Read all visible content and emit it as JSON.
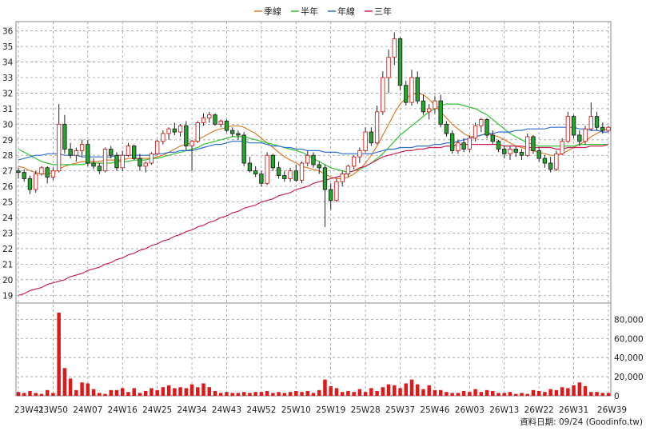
{
  "legend": [
    {
      "label": "季線",
      "color": "#e07b2a"
    },
    {
      "label": "半年",
      "color": "#33c233"
    },
    {
      "label": "年線",
      "color": "#2f6fd6"
    },
    {
      "label": "三年",
      "color": "#cc2255"
    }
  ],
  "footer": "資料日期: 09/24 (Goodinfo.tw)",
  "chart_data": [
    {
      "type": "candlestick",
      "x_ticks": [
        "23W41",
        "23W50",
        "24W07",
        "24W16",
        "24W25",
        "24W34",
        "24W43",
        "24W52",
        "25W10",
        "25W19",
        "25W28",
        "25W37",
        "25W46",
        "26W03",
        "26W13",
        "26W22",
        "26W31",
        "26W39"
      ],
      "ylim": [
        18.5,
        36.6
      ],
      "y_ticks": [
        19,
        20,
        21,
        22,
        23,
        24,
        25,
        26,
        27,
        28,
        29,
        30,
        31,
        32,
        33,
        34,
        35,
        36
      ],
      "grid": true,
      "legend_position": "top-center",
      "candles": [
        [
          27.0,
          27.2,
          26.5,
          26.9
        ],
        [
          26.9,
          27.1,
          26.3,
          26.5
        ],
        [
          26.5,
          26.7,
          25.5,
          25.8
        ],
        [
          25.8,
          27.0,
          25.6,
          26.8
        ],
        [
          26.8,
          27.3,
          26.7,
          27.2
        ],
        [
          27.2,
          27.3,
          26.2,
          26.6
        ],
        [
          26.6,
          27.2,
          26.4,
          27.0
        ],
        [
          27.0,
          31.3,
          26.9,
          30.0
        ],
        [
          30.0,
          30.6,
          28.1,
          28.4
        ],
        [
          28.4,
          28.8,
          27.8,
          28.0
        ],
        [
          28.0,
          28.5,
          27.6,
          28.3
        ],
        [
          28.3,
          29.0,
          27.9,
          28.7
        ],
        [
          28.7,
          29.0,
          27.3,
          27.5
        ],
        [
          27.5,
          27.8,
          27.1,
          27.3
        ],
        [
          27.3,
          27.5,
          26.8,
          27.0
        ],
        [
          27.0,
          28.5,
          26.9,
          28.4
        ],
        [
          28.4,
          28.6,
          27.8,
          28.0
        ],
        [
          28.0,
          28.2,
          27.0,
          27.2
        ],
        [
          27.2,
          28.3,
          27.0,
          28.0
        ],
        [
          28.0,
          28.8,
          27.9,
          28.6
        ],
        [
          28.6,
          28.7,
          27.7,
          27.8
        ],
        [
          27.8,
          28.1,
          27.0,
          27.3
        ],
        [
          27.3,
          27.6,
          26.9,
          27.5
        ],
        [
          27.5,
          28.2,
          27.4,
          28.1
        ],
        [
          28.1,
          29.0,
          28.0,
          28.9
        ],
        [
          28.9,
          29.6,
          28.7,
          29.4
        ],
        [
          29.4,
          29.8,
          29.0,
          29.7
        ],
        [
          29.7,
          30.1,
          29.3,
          29.5
        ],
        [
          29.5,
          30.0,
          29.2,
          29.9
        ],
        [
          29.9,
          30.2,
          28.3,
          28.6
        ],
        [
          28.6,
          29.0,
          27.0,
          28.9
        ],
        [
          28.9,
          30.2,
          28.8,
          30.1
        ],
        [
          30.1,
          30.7,
          29.9,
          30.4
        ],
        [
          30.4,
          30.8,
          30.1,
          30.6
        ],
        [
          30.6,
          30.7,
          29.9,
          30.0
        ],
        [
          30.0,
          30.3,
          29.8,
          30.2
        ],
        [
          30.2,
          30.3,
          29.5,
          29.6
        ],
        [
          29.6,
          29.8,
          29.2,
          29.4
        ],
        [
          29.4,
          29.6,
          29.0,
          29.3
        ],
        [
          29.3,
          29.5,
          27.3,
          27.5
        ],
        [
          27.5,
          27.9,
          26.9,
          27.0
        ],
        [
          27.0,
          27.3,
          26.6,
          26.8
        ],
        [
          26.8,
          27.0,
          26.0,
          26.2
        ],
        [
          26.2,
          28.2,
          26.1,
          28.0
        ],
        [
          28.0,
          28.1,
          27.0,
          27.2
        ],
        [
          27.2,
          27.6,
          26.5,
          26.7
        ],
        [
          26.7,
          27.0,
          26.3,
          26.5
        ],
        [
          26.5,
          27.2,
          26.3,
          27.0
        ],
        [
          27.0,
          27.4,
          26.3,
          26.4
        ],
        [
          26.4,
          27.6,
          26.2,
          27.5
        ],
        [
          27.5,
          28.3,
          27.3,
          28.0
        ],
        [
          28.0,
          28.2,
          27.2,
          27.4
        ],
        [
          27.4,
          27.6,
          26.8,
          27.2
        ],
        [
          27.2,
          27.4,
          23.4,
          25.8
        ],
        [
          25.8,
          26.2,
          24.5,
          25.1
        ],
        [
          25.1,
          26.5,
          25.0,
          26.3
        ],
        [
          26.3,
          27.0,
          26.0,
          26.8
        ],
        [
          26.8,
          27.4,
          26.6,
          27.3
        ],
        [
          27.3,
          28.0,
          27.1,
          27.9
        ],
        [
          27.9,
          28.5,
          27.5,
          28.3
        ],
        [
          28.3,
          29.8,
          28.2,
          29.5
        ],
        [
          29.5,
          29.8,
          28.6,
          28.8
        ],
        [
          28.8,
          31.2,
          28.7,
          30.8
        ],
        [
          30.8,
          33.4,
          30.6,
          33.0
        ],
        [
          33.0,
          34.8,
          32.0,
          34.3
        ],
        [
          34.3,
          35.9,
          33.8,
          35.5
        ],
        [
          35.5,
          35.6,
          32.2,
          32.5
        ],
        [
          32.5,
          32.8,
          31.2,
          31.4
        ],
        [
          31.4,
          33.5,
          31.2,
          33.0
        ],
        [
          33.0,
          33.4,
          31.3,
          31.5
        ],
        [
          31.5,
          31.9,
          30.6,
          30.8
        ],
        [
          30.8,
          31.3,
          30.3,
          31.0
        ],
        [
          31.0,
          31.8,
          30.7,
          31.5
        ],
        [
          31.5,
          31.9,
          29.8,
          30.0
        ],
        [
          30.0,
          30.2,
          29.2,
          29.4
        ],
        [
          29.4,
          29.6,
          28.1,
          28.3
        ],
        [
          28.3,
          29.0,
          28.1,
          28.8
        ],
        [
          28.8,
          29.1,
          28.2,
          28.4
        ],
        [
          28.4,
          29.3,
          28.2,
          29.1
        ],
        [
          29.1,
          30.1,
          28.9,
          29.9
        ],
        [
          29.9,
          30.4,
          29.5,
          30.3
        ],
        [
          30.3,
          30.4,
          29.1,
          29.3
        ],
        [
          29.3,
          29.6,
          28.7,
          28.9
        ],
        [
          28.9,
          29.0,
          28.2,
          28.4
        ],
        [
          28.4,
          28.6,
          27.8,
          28.1
        ],
        [
          28.1,
          28.6,
          27.7,
          28.4
        ],
        [
          28.4,
          28.6,
          27.9,
          28.2
        ],
        [
          28.2,
          28.4,
          27.7,
          28.0
        ],
        [
          28.0,
          29.4,
          27.9,
          29.2
        ],
        [
          29.2,
          29.3,
          28.1,
          28.3
        ],
        [
          28.3,
          28.5,
          27.6,
          27.8
        ],
        [
          27.8,
          28.0,
          27.2,
          27.5
        ],
        [
          27.5,
          27.9,
          26.9,
          27.1
        ],
        [
          27.1,
          28.3,
          27.0,
          28.1
        ],
        [
          28.1,
          29.1,
          28.0,
          28.9
        ],
        [
          28.9,
          30.8,
          28.8,
          30.5
        ],
        [
          30.5,
          30.6,
          29.1,
          29.3
        ],
        [
          29.3,
          29.6,
          28.6,
          28.9
        ],
        [
          28.9,
          29.9,
          28.7,
          29.7
        ],
        [
          29.7,
          31.4,
          29.6,
          30.5
        ],
        [
          30.5,
          30.8,
          29.6,
          29.8
        ],
        [
          29.8,
          30.1,
          29.4,
          29.6
        ],
        [
          29.6,
          29.9,
          29.5,
          29.8
        ]
      ],
      "series": [
        {
          "name": "季線",
          "values": [
            27.3,
            27.2,
            27.0,
            26.9,
            26.8,
            26.8,
            26.9,
            27.1,
            27.3,
            27.4,
            27.5,
            27.6,
            27.6,
            27.6,
            27.6,
            27.7,
            27.7,
            27.7,
            27.7,
            27.8,
            27.8,
            27.8,
            27.8,
            27.8,
            27.9,
            28.0,
            28.2,
            28.4,
            28.6,
            28.7,
            28.8,
            29.0,
            29.2,
            29.4,
            29.6,
            29.7,
            29.8,
            29.9,
            29.9,
            29.8,
            29.6,
            29.4,
            29.1,
            28.8,
            28.5,
            28.2,
            27.9,
            27.7,
            27.5,
            27.3,
            27.2,
            27.1,
            27.0,
            26.8,
            26.6,
            26.5,
            26.5,
            26.6,
            26.8,
            27.1,
            27.5,
            28.0,
            28.6,
            29.3,
            30.0,
            30.7,
            31.3,
            31.7,
            31.9,
            32.0,
            31.9,
            31.6,
            31.2,
            30.8,
            30.4,
            30.0,
            29.7,
            29.4,
            29.2,
            29.2,
            29.3,
            29.4,
            29.3,
            29.2,
            29.0,
            28.8,
            28.6,
            28.5,
            28.4,
            28.3,
            28.2,
            28.1,
            28.0,
            28.0,
            28.1,
            28.3,
            28.5,
            28.7,
            28.9,
            29.2,
            29.4,
            29.6,
            29.7
          ]
        },
        {
          "name": "半年",
          "values": [
            28.4,
            28.2,
            28.0,
            27.8,
            27.6,
            27.5,
            27.4,
            27.4,
            27.4,
            27.4,
            27.4,
            27.4,
            27.5,
            27.5,
            27.5,
            27.5,
            27.5,
            27.6,
            27.6,
            27.6,
            27.7,
            27.7,
            27.7,
            27.8,
            27.8,
            27.9,
            28.0,
            28.1,
            28.2,
            28.3,
            28.4,
            28.5,
            28.7,
            28.8,
            28.9,
            29.0,
            29.1,
            29.2,
            29.2,
            29.2,
            29.1,
            29.0,
            28.9,
            28.8,
            28.7,
            28.6,
            28.5,
            28.4,
            28.3,
            28.2,
            28.0,
            27.8,
            27.6,
            27.4,
            27.2,
            27.1,
            27.0,
            26.9,
            27.0,
            27.1,
            27.3,
            27.5,
            27.8,
            28.1,
            28.5,
            28.9,
            29.3,
            29.6,
            29.9,
            30.2,
            30.5,
            30.8,
            31.0,
            31.2,
            31.3,
            31.3,
            31.3,
            31.2,
            31.1,
            31.0,
            30.8,
            30.6,
            30.3,
            30.0,
            29.7,
            29.4,
            29.2,
            29.0,
            28.8,
            28.7,
            28.6,
            28.6,
            28.6,
            28.6,
            28.6,
            28.6,
            28.6,
            28.7,
            28.7,
            28.7,
            28.7,
            28.7,
            28.7
          ]
        },
        {
          "name": "年線",
          "values": [
            27.7,
            27.8,
            27.9,
            28.0,
            28.0,
            28.1,
            28.1,
            28.1,
            28.0,
            28.0,
            28.0,
            27.9,
            27.9,
            27.9,
            27.9,
            27.9,
            27.9,
            28.0,
            28.0,
            28.0,
            28.0,
            28.0,
            28.0,
            28.0,
            28.1,
            28.1,
            28.2,
            28.2,
            28.3,
            28.3,
            28.3,
            28.4,
            28.5,
            28.6,
            28.7,
            28.7,
            28.8,
            28.9,
            28.9,
            28.9,
            28.8,
            28.8,
            28.8,
            28.7,
            28.6,
            28.6,
            28.5,
            28.5,
            28.4,
            28.4,
            28.3,
            28.3,
            28.3,
            28.2,
            28.2,
            28.2,
            28.1,
            28.1,
            28.1,
            28.1,
            28.1,
            28.1,
            28.2,
            28.3,
            28.4,
            28.4,
            28.5,
            28.5,
            28.5,
            28.6,
            28.6,
            28.6,
            28.7,
            28.7,
            28.8,
            28.8,
            28.9,
            29.0,
            29.1,
            29.2,
            29.3,
            29.4,
            29.4,
            29.5,
            29.5,
            29.5,
            29.6,
            29.6,
            29.7,
            29.7,
            29.7,
            29.7,
            29.8,
            29.8,
            29.8,
            29.8,
            29.8,
            29.7,
            29.7,
            29.6,
            29.6,
            29.5,
            29.5
          ]
        },
        {
          "name": "三年",
          "values": [
            19.0,
            19.1,
            19.3,
            19.4,
            19.5,
            19.7,
            19.8,
            19.9,
            20.0,
            20.2,
            20.3,
            20.4,
            20.6,
            20.7,
            20.8,
            21.0,
            21.1,
            21.3,
            21.4,
            21.6,
            21.7,
            21.9,
            22.0,
            22.2,
            22.3,
            22.5,
            22.6,
            22.8,
            22.9,
            23.1,
            23.2,
            23.4,
            23.5,
            23.7,
            23.8,
            24.0,
            24.1,
            24.3,
            24.4,
            24.6,
            24.7,
            24.8,
            25.0,
            25.1,
            25.2,
            25.4,
            25.5,
            25.6,
            25.8,
            25.9,
            26.0,
            26.2,
            26.3,
            26.4,
            26.5,
            26.6,
            26.7,
            26.9,
            27.0,
            27.2,
            27.3,
            27.5,
            27.7,
            27.9,
            28.0,
            28.1,
            28.2,
            28.3,
            28.3,
            28.4,
            28.4,
            28.5,
            28.5,
            28.5,
            28.6,
            28.6,
            28.7,
            28.7,
            28.7,
            28.7,
            28.7,
            28.7,
            28.7,
            28.7,
            28.6,
            28.6,
            28.6,
            28.6,
            28.5,
            28.5,
            28.5,
            28.5,
            28.5,
            28.4,
            28.4,
            28.5,
            28.5,
            28.5,
            28.5,
            28.6,
            28.6,
            28.6,
            28.7
          ]
        }
      ]
    },
    {
      "type": "bar",
      "name": "volume",
      "ylim": [
        0,
        92000
      ],
      "y_ticks": [
        "0",
        "20,000",
        "40,000",
        "60,000",
        "80,000"
      ],
      "y_tick_values": [
        0,
        20000,
        40000,
        60000,
        80000
      ],
      "values": [
        4000,
        3000,
        5000,
        3000,
        2000,
        6000,
        3000,
        87000,
        29000,
        18000,
        6000,
        14000,
        13000,
        7000,
        3000,
        2000,
        6000,
        6000,
        8000,
        4000,
        8000,
        3000,
        5000,
        8000,
        6000,
        9000,
        11000,
        8000,
        9000,
        8000,
        12000,
        9000,
        13000,
        9000,
        5000,
        3000,
        4000,
        3000,
        3000,
        4000,
        3000,
        4000,
        4000,
        5000,
        3000,
        4000,
        3000,
        4000,
        5000,
        4000,
        5000,
        3000,
        6000,
        17000,
        10000,
        8000,
        4000,
        5000,
        4000,
        7000,
        4000,
        8000,
        5000,
        9000,
        12000,
        11000,
        8000,
        13000,
        17000,
        12000,
        7000,
        11000,
        6000,
        6000,
        4000,
        3000,
        3000,
        5000,
        4000,
        7000,
        4000,
        6000,
        5000,
        3000,
        3000,
        4000,
        2000,
        3000,
        2000,
        6000,
        5000,
        4000,
        7000,
        6000,
        9000,
        8000,
        11000,
        14000,
        10000,
        4000,
        4000,
        3000,
        3000
      ]
    }
  ]
}
